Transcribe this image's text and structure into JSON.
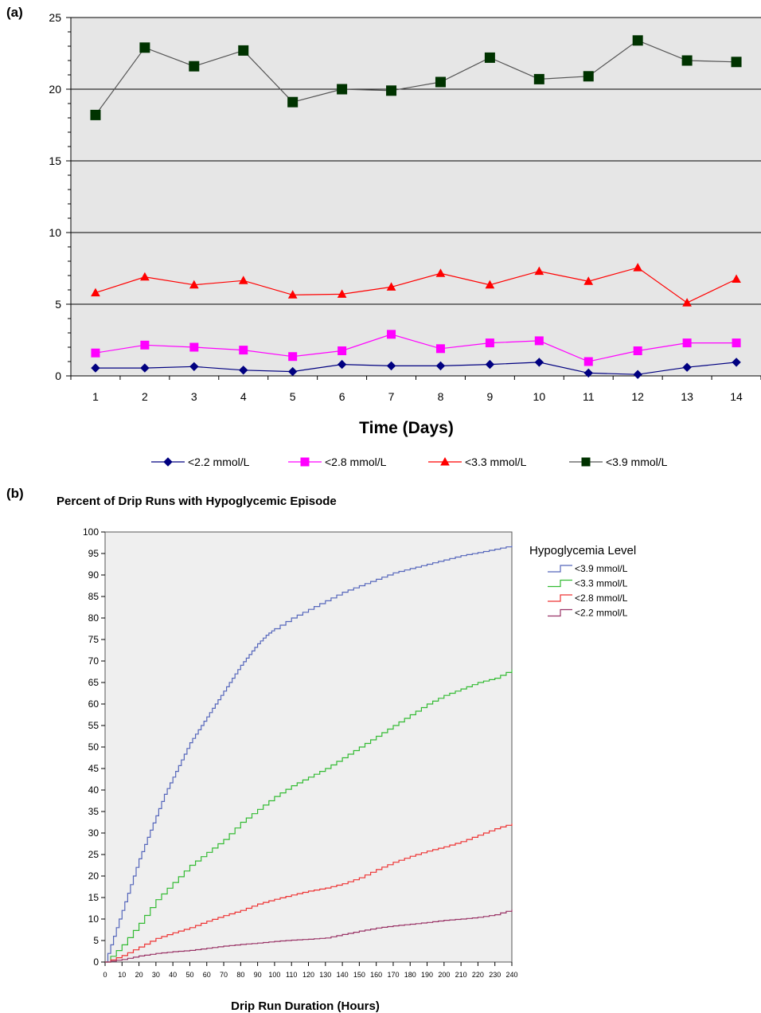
{
  "panel_a_label": "(a)",
  "panel_b_label": "(b)",
  "chart_data": [
    {
      "type": "line",
      "xlabel": "Time (Days)",
      "ylabel": "",
      "ylim": [
        0,
        25
      ],
      "yticks": [
        0,
        5,
        10,
        15,
        20,
        25
      ],
      "categories": [
        "1",
        "2",
        "3",
        "4",
        "5",
        "6",
        "7",
        "8",
        "9",
        "10",
        "11",
        "12",
        "13",
        "14"
      ],
      "grid": "horizontal major lines at 5-unit steps",
      "legend_position": "bottom",
      "series": [
        {
          "name": "<2.2 mmol/L",
          "color": "#000080",
          "marker": "diamond",
          "values": [
            0.55,
            0.55,
            0.65,
            0.4,
            0.3,
            0.8,
            0.7,
            0.7,
            0.8,
            0.95,
            0.2,
            0.1,
            0.6,
            0.95
          ]
        },
        {
          "name": "<2.8 mmol/L",
          "color": "#ff00ff",
          "marker": "square",
          "values": [
            1.6,
            2.15,
            2.0,
            1.8,
            1.35,
            1.75,
            2.9,
            1.9,
            2.3,
            2.45,
            1.0,
            1.75,
            2.3,
            2.3
          ]
        },
        {
          "name": "<3.3 mmol/L",
          "color": "#ff0000",
          "marker": "triangle",
          "values": [
            5.8,
            6.9,
            6.35,
            6.65,
            5.65,
            5.7,
            6.2,
            7.15,
            6.35,
            7.3,
            6.6,
            7.55,
            5.1,
            6.75
          ]
        },
        {
          "name": "<3.9 mmol/L",
          "color": "#003300",
          "marker": "square",
          "values": [
            18.2,
            22.9,
            21.6,
            22.7,
            19.1,
            20.0,
            19.9,
            20.5,
            22.2,
            20.7,
            20.9,
            23.4,
            22.0,
            21.9
          ]
        }
      ]
    },
    {
      "type": "line",
      "title": "Percent of Drip Runs with Hypoglycemic Episode",
      "xlabel": "Drip Run Duration (Hours)",
      "ylabel": "",
      "xlim": [
        0,
        240
      ],
      "ylim": [
        0,
        100
      ],
      "xticks": [
        0,
        10,
        20,
        30,
        40,
        50,
        60,
        70,
        80,
        90,
        100,
        110,
        120,
        130,
        140,
        150,
        160,
        170,
        180,
        190,
        200,
        210,
        220,
        230,
        240
      ],
      "yticks": [
        0,
        5,
        10,
        15,
        20,
        25,
        30,
        35,
        40,
        45,
        50,
        55,
        60,
        65,
        70,
        75,
        80,
        85,
        90,
        95,
        100
      ],
      "grid": "none",
      "legend_title": "Hypoglycemia Level",
      "legend_position": "right",
      "series": [
        {
          "name": "<3.9 mmol/L",
          "color": "#5566bb",
          "x": [
            0,
            5,
            10,
            15,
            20,
            25,
            30,
            35,
            40,
            45,
            50,
            55,
            60,
            65,
            70,
            75,
            80,
            85,
            90,
            95,
            100,
            110,
            120,
            130,
            140,
            150,
            160,
            170,
            180,
            190,
            200,
            210,
            220,
            230,
            240
          ],
          "y": [
            0,
            6,
            12,
            18,
            24,
            29,
            34,
            39,
            43,
            47,
            51,
            54,
            57,
            60,
            63,
            66,
            69,
            71.5,
            74,
            76,
            77.5,
            80,
            82,
            84,
            86,
            87.5,
            89,
            90.5,
            91.5,
            92.5,
            93.5,
            94.5,
            95.2,
            96,
            96.8
          ]
        },
        {
          "name": "<3.3 mmol/L",
          "color": "#33bb33",
          "x": [
            0,
            10,
            20,
            30,
            40,
            50,
            60,
            70,
            80,
            90,
            100,
            110,
            120,
            130,
            140,
            150,
            160,
            170,
            180,
            190,
            200,
            210,
            220,
            230,
            240
          ],
          "y": [
            0,
            4,
            9,
            14.5,
            18.5,
            22.5,
            25.5,
            28.5,
            32.5,
            35.5,
            38.5,
            41,
            43,
            45,
            47.5,
            50,
            52.5,
            55,
            57.5,
            60,
            62,
            63.5,
            65,
            66,
            68
          ]
        },
        {
          "name": "<2.8 mmol/L",
          "color": "#ee3333",
          "x": [
            0,
            10,
            20,
            30,
            40,
            50,
            60,
            70,
            80,
            90,
            100,
            110,
            120,
            130,
            140,
            150,
            160,
            170,
            180,
            190,
            200,
            210,
            220,
            230,
            240
          ],
          "y": [
            0,
            1.5,
            3.5,
            5.5,
            6.8,
            8,
            9.5,
            10.8,
            12,
            13.5,
            14.6,
            15.6,
            16.5,
            17.2,
            18.2,
            19.6,
            21.5,
            23.2,
            24.6,
            25.8,
            26.8,
            28,
            29.5,
            31,
            32.2
          ]
        },
        {
          "name": "<2.2 mmol/L",
          "color": "#993366",
          "x": [
            0,
            10,
            20,
            30,
            40,
            50,
            60,
            70,
            80,
            90,
            100,
            110,
            120,
            130,
            140,
            150,
            160,
            170,
            180,
            190,
            200,
            210,
            220,
            230,
            240
          ],
          "y": [
            0,
            0.6,
            1.4,
            2,
            2.4,
            2.7,
            3.2,
            3.7,
            4.1,
            4.4,
            4.8,
            5.1,
            5.3,
            5.6,
            6.4,
            7.2,
            7.9,
            8.4,
            8.8,
            9.2,
            9.7,
            10,
            10.4,
            11,
            12.2
          ]
        }
      ]
    }
  ]
}
